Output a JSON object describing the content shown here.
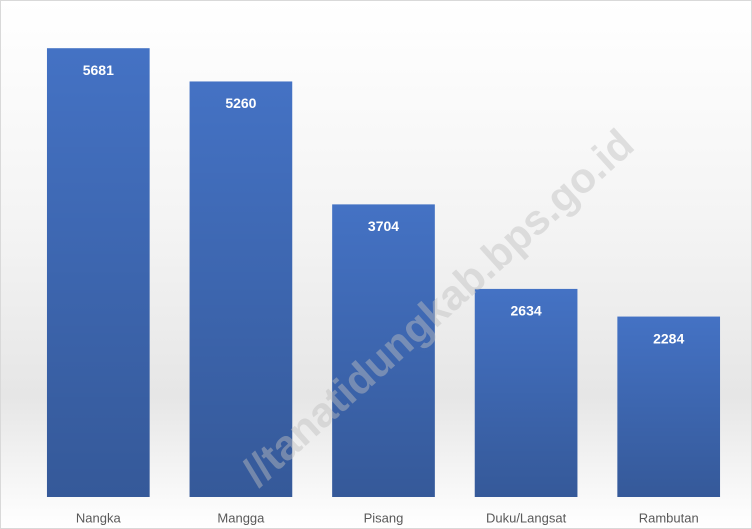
{
  "chart_data": {
    "type": "bar",
    "categories": [
      "Nangka",
      "Mangga",
      "Pisang",
      "Duku/Langsat",
      "Rambutan"
    ],
    "values": [
      5681,
      5260,
      3704,
      2634,
      2284
    ],
    "color": "#4472c4",
    "ylim": [
      0,
      6000
    ],
    "grid": false,
    "watermark": "//tanatidungkab.bps.go.id"
  }
}
